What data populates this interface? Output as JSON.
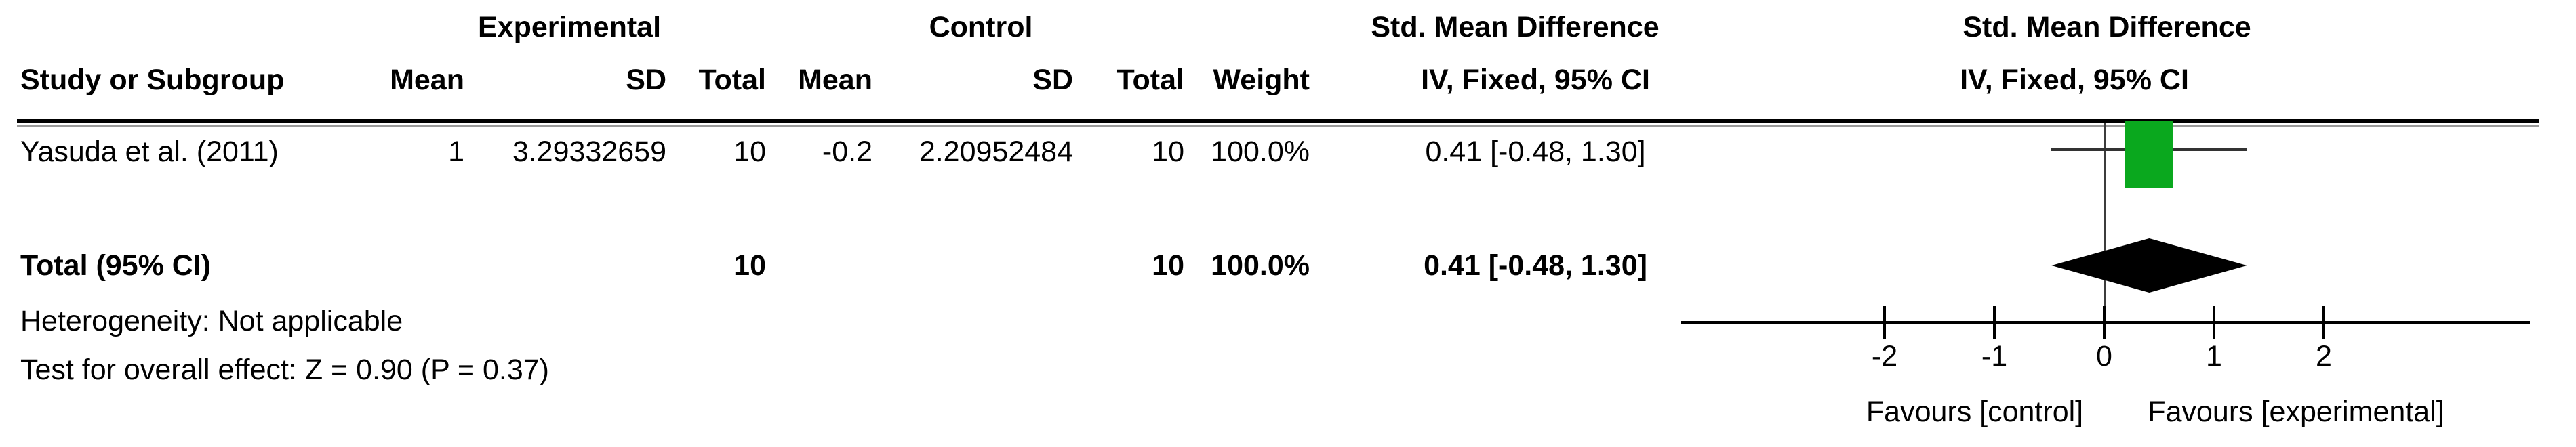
{
  "headers": {
    "experimental": "Experimental",
    "control": "Control",
    "smd_left": "Std. Mean Difference",
    "smd_right": "Std. Mean Difference",
    "study": "Study or Subgroup",
    "mean_exp": "Mean",
    "sd_exp": "SD",
    "total_exp": "Total",
    "mean_ctrl": "Mean",
    "sd_ctrl": "SD",
    "total_ctrl": "Total",
    "weight": "Weight",
    "ci_left": "IV, Fixed, 95% CI",
    "ci_right": "IV, Fixed, 95% CI"
  },
  "study_row": {
    "study": "Yasuda et al. (2011)",
    "mean_exp": "1",
    "sd_exp": "3.29332659",
    "total_exp": "10",
    "mean_ctrl": "-0.2",
    "sd_ctrl": "2.20952484",
    "total_ctrl": "10",
    "weight": "100.0%",
    "ci": "0.41 [-0.48, 1.30]"
  },
  "total_row": {
    "label": "Total (95% CI)",
    "total_exp": "10",
    "total_ctrl": "10",
    "weight": "100.0%",
    "ci": "0.41 [-0.48, 1.30]"
  },
  "footnotes": {
    "heterogeneity": "Heterogeneity: Not applicable",
    "overall_effect": "Test for overall effect: Z = 0.90 (P = 0.37)"
  },
  "colors": {
    "study_marker_green": "#0aa81e",
    "summary_diamond": "#000000",
    "ci_line": "#333333",
    "rule_shadow": "#9a9a9a"
  },
  "chart_data": {
    "type": "forest",
    "effect_measure": "Std. Mean Difference",
    "model": "IV, Fixed, 95% CI",
    "studies": [
      {
        "name": "Yasuda et al. (2011)",
        "mean_exp": 1,
        "sd_exp": 3.29332659,
        "n_exp": 10,
        "mean_ctrl": -0.2,
        "sd_ctrl": 2.20952484,
        "n_ctrl": 10,
        "weight_pct": 100.0,
        "estimate": 0.41,
        "ci_low": -0.48,
        "ci_high": 1.3
      }
    ],
    "total": {
      "label": "Total (95% CI)",
      "n_exp": 10,
      "n_ctrl": 10,
      "weight_pct": 100.0,
      "estimate": 0.41,
      "ci_low": -0.48,
      "ci_high": 1.3
    },
    "heterogeneity": "Not applicable",
    "overall_effect": {
      "z": 0.9,
      "p": 0.37
    },
    "axis": {
      "ticks": [
        -2,
        -1,
        0,
        1,
        2
      ],
      "xlim": [
        -3.85,
        3.88
      ],
      "label_left": "Favours [control]",
      "label_right": "Favours [experimental]",
      "grid": false
    }
  }
}
